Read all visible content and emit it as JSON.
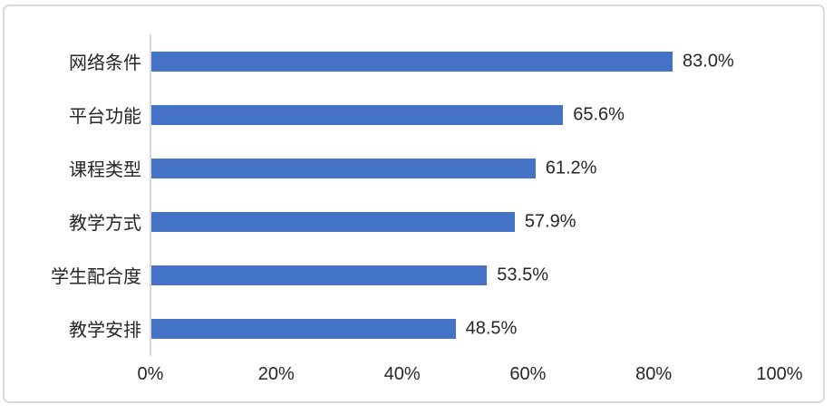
{
  "chart_data": {
    "type": "bar",
    "orientation": "horizontal",
    "title": "",
    "xlabel": "",
    "ylabel": "",
    "categories": [
      "网络条件",
      "平台功能",
      "课程类型",
      "教学方式",
      "学生配合度",
      "教学安排"
    ],
    "values": [
      83.0,
      65.6,
      61.2,
      57.9,
      53.5,
      48.5
    ],
    "value_labels": [
      "83.0%",
      "65.6%",
      "61.2%",
      "57.9%",
      "53.5%",
      "48.5%"
    ],
    "x_ticks": [
      {
        "value": 0,
        "label": "0%"
      },
      {
        "value": 20,
        "label": "20%"
      },
      {
        "value": 40,
        "label": "40%"
      },
      {
        "value": 60,
        "label": "60%"
      },
      {
        "value": 80,
        "label": "80%"
      },
      {
        "value": 100,
        "label": "100%"
      }
    ],
    "xlim": [
      0,
      100
    ],
    "grid": false,
    "legend": false,
    "colors": {
      "bar": "#4472C4",
      "axis_line": "#D9D9D9",
      "text": "#262626",
      "frame_border": "#DBDBDB",
      "background": "#FFFFFF"
    }
  }
}
